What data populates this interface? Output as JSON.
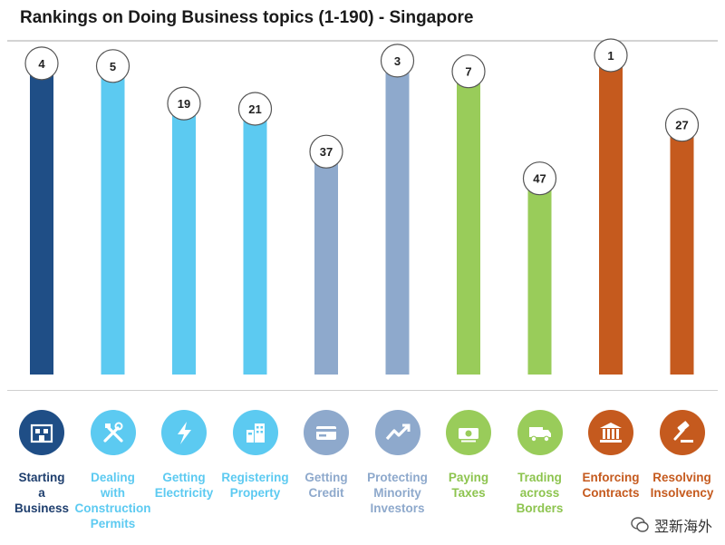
{
  "chart_data": {
    "type": "bar",
    "title": "Rankings on Doing Business topics (1-190) - Singapore",
    "categories": [
      "Starting\na\nBusiness",
      "Dealing\nwith\nConstruction\nPermits",
      "Getting\nElectricity",
      "Registering\nProperty",
      "Getting\nCredit",
      "Protecting\nMinority\nInvestors",
      "Paying\nTaxes",
      "Trading\nacross\nBorders",
      "Enforcing\nContracts",
      "Resolving\nInsolvency"
    ],
    "values": [
      4,
      5,
      19,
      21,
      37,
      3,
      7,
      47,
      1,
      27
    ],
    "bar_colors": [
      "#1f4e86",
      "#5ccaf1",
      "#5ccaf1",
      "#5ccaf1",
      "#8ea9cc",
      "#8ea9cc",
      "#99cc5a",
      "#99cc5a",
      "#c55a1e",
      "#c55a1e"
    ],
    "label_colors": [
      "#1f3f6e",
      "#5ccaf1",
      "#5ccaf1",
      "#5ccaf1",
      "#8ea9cc",
      "#8ea9cc",
      "#8dc44f",
      "#8dc44f",
      "#c55a1e",
      "#c55a1e"
    ],
    "icons": [
      "building-icon",
      "tools-icon",
      "lightning-icon",
      "city-icon",
      "credit-card-icon",
      "trend-up-icon",
      "money-icon",
      "truck-icon",
      "courthouse-icon",
      "gavel-icon"
    ],
    "grid": false,
    "legend": "none"
  },
  "watermark": {
    "text": "翌新海外"
  }
}
